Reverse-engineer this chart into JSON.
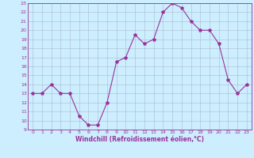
{
  "x": [
    0,
    1,
    2,
    3,
    4,
    5,
    6,
    7,
    8,
    9,
    10,
    11,
    12,
    13,
    14,
    15,
    16,
    17,
    18,
    19,
    20,
    21,
    22,
    23
  ],
  "y": [
    13,
    13,
    14,
    13,
    13,
    10.5,
    9.5,
    9.5,
    12,
    16.5,
    17,
    19.5,
    18.5,
    19,
    22,
    23,
    22.5,
    21,
    20,
    20,
    18.5,
    14.5,
    13,
    14
  ],
  "line_color": "#993399",
  "marker": "*",
  "marker_size": 3,
  "bg_color": "#cceeff",
  "grid_color": "#aabbcc",
  "xlabel": "Windchill (Refroidissement éolien,°C)",
  "xlabel_color": "#993399",
  "tick_color": "#993399",
  "ylim": [
    9,
    23
  ],
  "xlim": [
    -0.5,
    23.5
  ],
  "yticks": [
    9,
    10,
    11,
    12,
    13,
    14,
    15,
    16,
    17,
    18,
    19,
    20,
    21,
    22,
    23
  ],
  "xticks": [
    0,
    1,
    2,
    3,
    4,
    5,
    6,
    7,
    8,
    9,
    10,
    11,
    12,
    13,
    14,
    15,
    16,
    17,
    18,
    19,
    20,
    21,
    22,
    23
  ],
  "tick_fontsize": 4.5,
  "xlabel_fontsize": 5.5
}
